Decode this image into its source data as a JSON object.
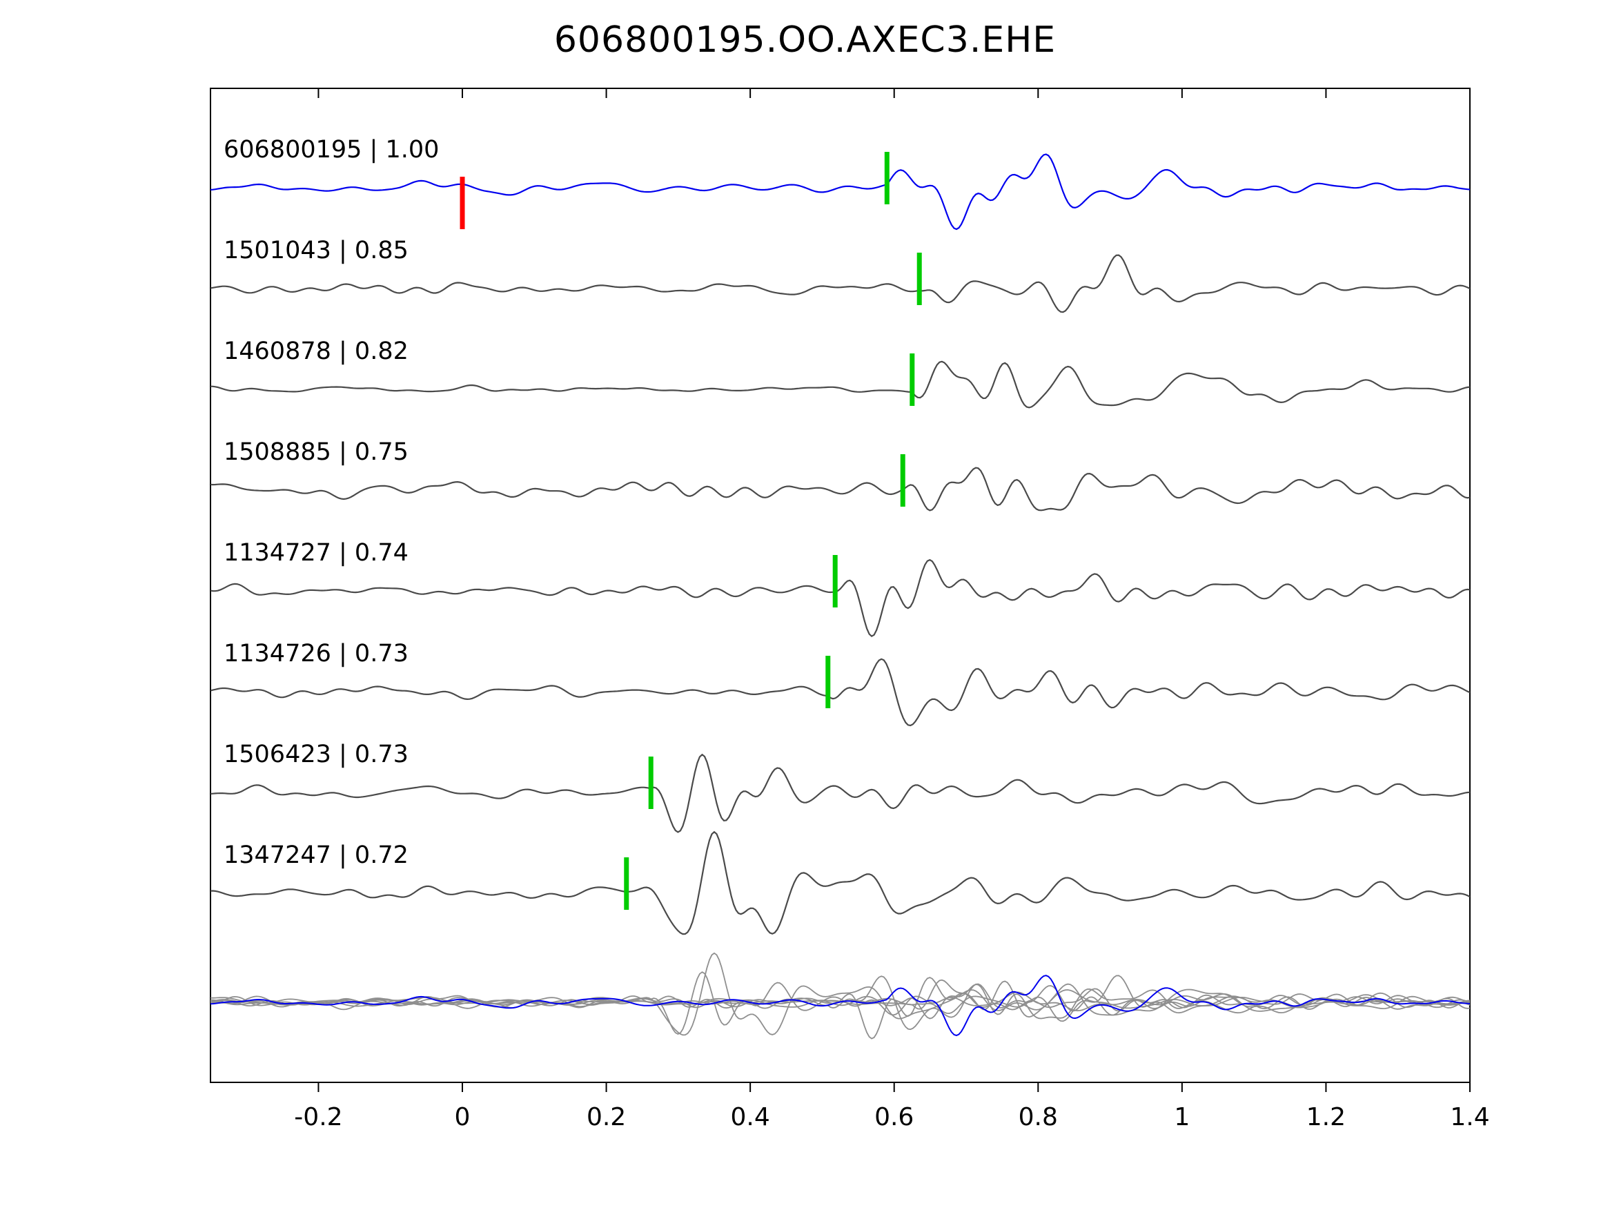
{
  "window": {
    "title": "606800195.OO.AXEC3.EHE"
  },
  "chart_data": {
    "type": "line",
    "title": "606800195.OO.AXEC3.EHE",
    "xlabel": "",
    "ylabel": "",
    "xlim": [
      -0.35,
      1.4
    ],
    "x_ticks": [
      {
        "value": -0.2,
        "label": "-0.2"
      },
      {
        "value": 0,
        "label": "0"
      },
      {
        "value": 0.2,
        "label": "0.2"
      },
      {
        "value": 0.4,
        "label": "0.4"
      },
      {
        "value": 0.6,
        "label": "0.6"
      },
      {
        "value": 0.8,
        "label": "0.8"
      },
      {
        "value": 1,
        "label": "1"
      },
      {
        "value": 1.2,
        "label": "1.2"
      },
      {
        "value": 1.4,
        "label": "1.4"
      }
    ],
    "grid": false,
    "legend": false,
    "colors": {
      "reference_trace": "#0000ee",
      "match_trace": "#4a4a4a",
      "overlay_trace": "#8f8f8f",
      "pick_marker": "#00cc00",
      "reference_marker": "#ff0000",
      "axis": "#000000",
      "label_text": "#000000"
    },
    "traces": [
      {
        "id": "606800195",
        "correlation": "1.00",
        "label": "606800195 | 1.00",
        "pick_time": 0.59,
        "is_reference": true
      },
      {
        "id": "1501043",
        "correlation": "0.85",
        "label": "1501043 | 0.85",
        "pick_time": 0.635,
        "is_reference": false
      },
      {
        "id": "1460878",
        "correlation": "0.82",
        "label": "1460878 | 0.82",
        "pick_time": 0.625,
        "is_reference": false
      },
      {
        "id": "1508885",
        "correlation": "0.75",
        "label": "1508885 | 0.75",
        "pick_time": 0.612,
        "is_reference": false
      },
      {
        "id": "1134727",
        "correlation": "0.74",
        "label": "1134727 | 0.74",
        "pick_time": 0.518,
        "is_reference": false
      },
      {
        "id": "1134726",
        "correlation": "0.73",
        "label": "1134726 | 0.73",
        "pick_time": 0.508,
        "is_reference": false
      },
      {
        "id": "1506423",
        "correlation": "0.73",
        "label": "1506423 | 0.73",
        "pick_time": 0.262,
        "is_reference": false
      },
      {
        "id": "1347247",
        "correlation": "0.72",
        "label": "1347247 | 0.72",
        "pick_time": 0.228,
        "is_reference": false
      }
    ],
    "reference_marker": {
      "trace_id": "606800195",
      "time": 0,
      "color": "#ff0000"
    },
    "overlay_row": {
      "description": "all traces overlaid, reference in blue on top"
    }
  }
}
